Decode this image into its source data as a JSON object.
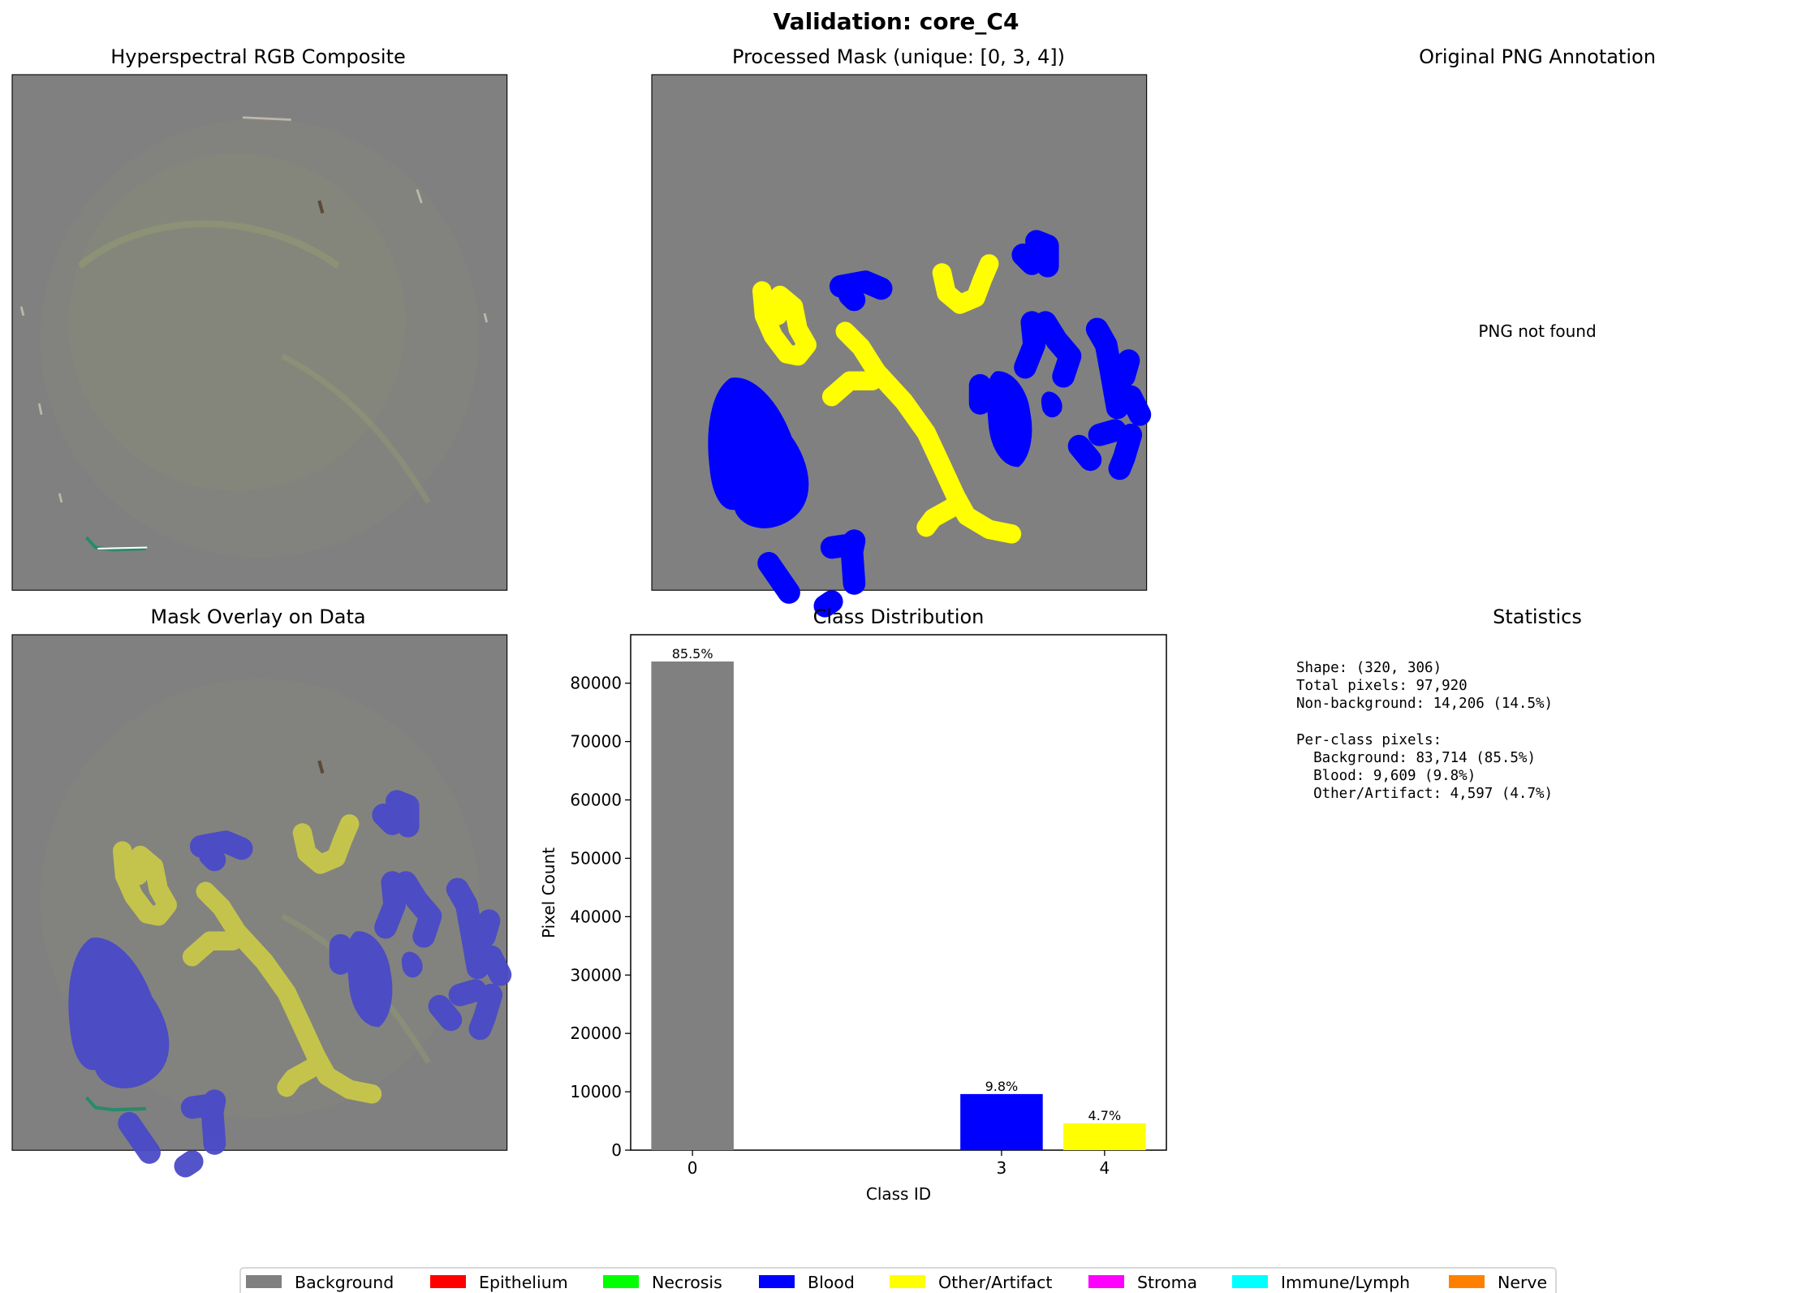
{
  "suptitle": "Validation: core_C4",
  "panels": {
    "rgb": {
      "title": "Hyperspectral RGB Composite"
    },
    "mask": {
      "title": "Processed Mask (unique: [0, 3, 4])"
    },
    "png": {
      "title": "Original PNG Annotation",
      "message": "PNG not found"
    },
    "overlay": {
      "title": "Mask Overlay on Data"
    },
    "stats": {
      "title": "Statistics",
      "lines": [
        "Shape: (320, 306)",
        "Total pixels: 97,920",
        "Non-background: 14,206 (14.5%)",
        "",
        "Per-class pixels:",
        "  Background: 83,714 (85.5%)",
        "  Blood: 9,609 (9.8%)",
        "  Other/Artifact: 4,597 (4.7%)"
      ]
    }
  },
  "colors": {
    "background": "#808080",
    "blood": "#0000ff",
    "other": "#ffff00",
    "overlay_blood": "#4a4ac8",
    "overlay_other": "#c8c84a"
  },
  "chart_data": {
    "type": "bar",
    "title": "Class Distribution",
    "xlabel": "Class ID",
    "ylabel": "Pixel Count",
    "categories": [
      0,
      3,
      4
    ],
    "values": [
      83714,
      9609,
      4597
    ],
    "bar_labels": [
      "85.5%",
      "9.8%",
      "4.7%"
    ],
    "bar_colors": [
      "#808080",
      "#0000ff",
      "#ffff00"
    ],
    "xticks": [
      0,
      3,
      4
    ],
    "yticks": [
      0,
      10000,
      20000,
      30000,
      40000,
      50000,
      60000,
      70000,
      80000
    ],
    "xlim": [
      -0.6,
      4.6
    ],
    "ylim": [
      0,
      88300
    ],
    "grid": false
  },
  "legend": [
    {
      "label": "Background",
      "color": "#808080"
    },
    {
      "label": "Epithelium",
      "color": "#ff0000"
    },
    {
      "label": "Necrosis",
      "color": "#00ff00"
    },
    {
      "label": "Blood",
      "color": "#0000ff"
    },
    {
      "label": "Other/Artifact",
      "color": "#ffff00"
    },
    {
      "label": "Stroma",
      "color": "#ff00ff"
    },
    {
      "label": "Immune/Lymph",
      "color": "#00ffff"
    },
    {
      "label": "Nerve",
      "color": "#ff8000"
    }
  ]
}
